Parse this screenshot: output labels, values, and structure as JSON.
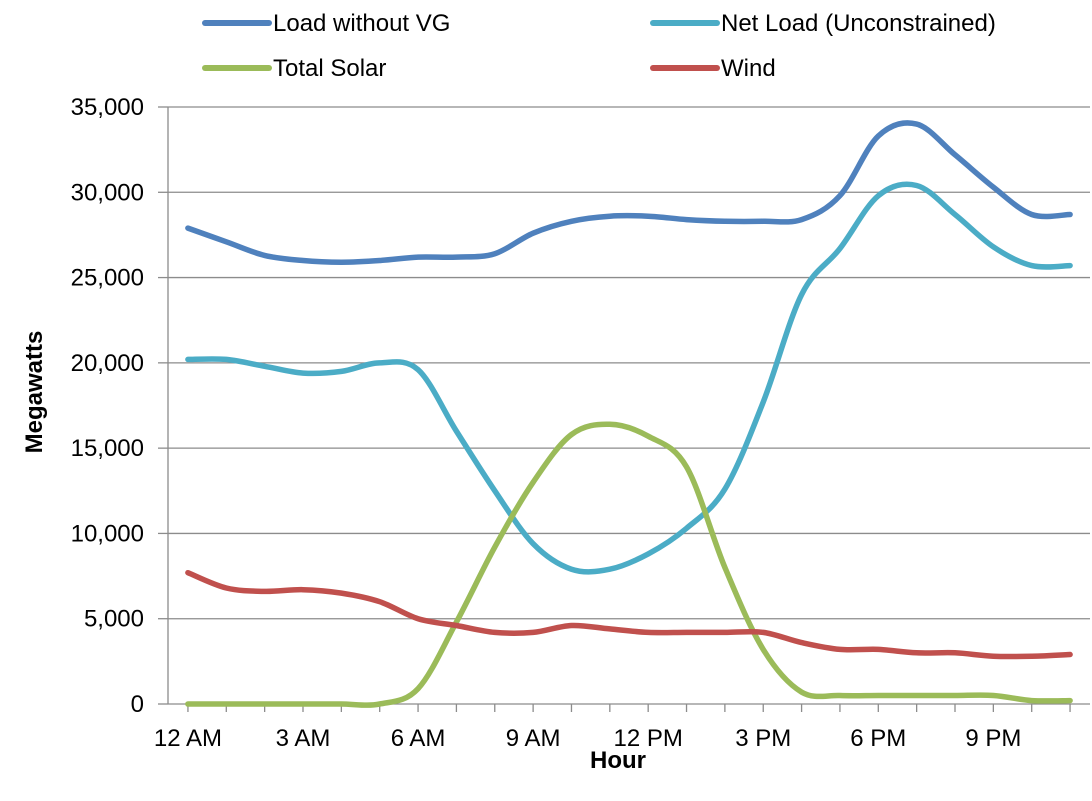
{
  "chart_data": {
    "type": "line",
    "title": "",
    "xlabel": "Hour",
    "ylabel": "Megawatts",
    "ylim": [
      0,
      35000
    ],
    "yticks": [
      0,
      5000,
      10000,
      15000,
      20000,
      25000,
      30000,
      35000
    ],
    "ytick_labels": [
      "0",
      "5,000",
      "10,000",
      "15,000",
      "20,000",
      "25,000",
      "30,000",
      "35,000"
    ],
    "x": [
      0,
      1,
      2,
      3,
      4,
      5,
      6,
      7,
      8,
      9,
      10,
      11,
      12,
      13,
      14,
      15,
      16,
      17,
      18,
      19,
      20,
      21,
      22,
      23
    ],
    "xticks": [
      0,
      3,
      6,
      9,
      12,
      15,
      18,
      21
    ],
    "xtick_labels": [
      "12 AM",
      "3 AM",
      "6 AM",
      "9 AM",
      "12 PM",
      "3 PM",
      "6 PM",
      "9 PM"
    ],
    "grid": true,
    "legend_position": "top",
    "series": [
      {
        "name": "Load without VG",
        "color": "#4F81BD",
        "values": [
          27900,
          27100,
          26300,
          26000,
          25900,
          26000,
          26200,
          26200,
          26400,
          27600,
          28300,
          28600,
          28600,
          28400,
          28300,
          28300,
          28400,
          29800,
          33300,
          34000,
          32200,
          30300,
          28700,
          28700
        ]
      },
      {
        "name": "Net Load (Unconstrained)",
        "color": "#4BACC6",
        "values": [
          20200,
          20200,
          19800,
          19400,
          19500,
          20000,
          19600,
          16000,
          12500,
          9400,
          7900,
          7900,
          8800,
          10300,
          12600,
          17700,
          24000,
          26700,
          29800,
          30400,
          28700,
          26800,
          25700,
          25700
        ]
      },
      {
        "name": "Total Solar",
        "color": "#9BBB59",
        "values": [
          0,
          0,
          0,
          0,
          0,
          0,
          900,
          4800,
          9200,
          13000,
          15800,
          16400,
          15700,
          13900,
          8000,
          3200,
          700,
          500,
          500,
          500,
          500,
          500,
          200,
          200
        ]
      },
      {
        "name": "Wind",
        "color": "#C0504D",
        "values": [
          7700,
          6800,
          6600,
          6700,
          6500,
          6000,
          5000,
          4600,
          4200,
          4200,
          4600,
          4400,
          4200,
          4200,
          4200,
          4200,
          3600,
          3200,
          3200,
          3000,
          3000,
          2800,
          2800,
          2900
        ]
      }
    ]
  }
}
